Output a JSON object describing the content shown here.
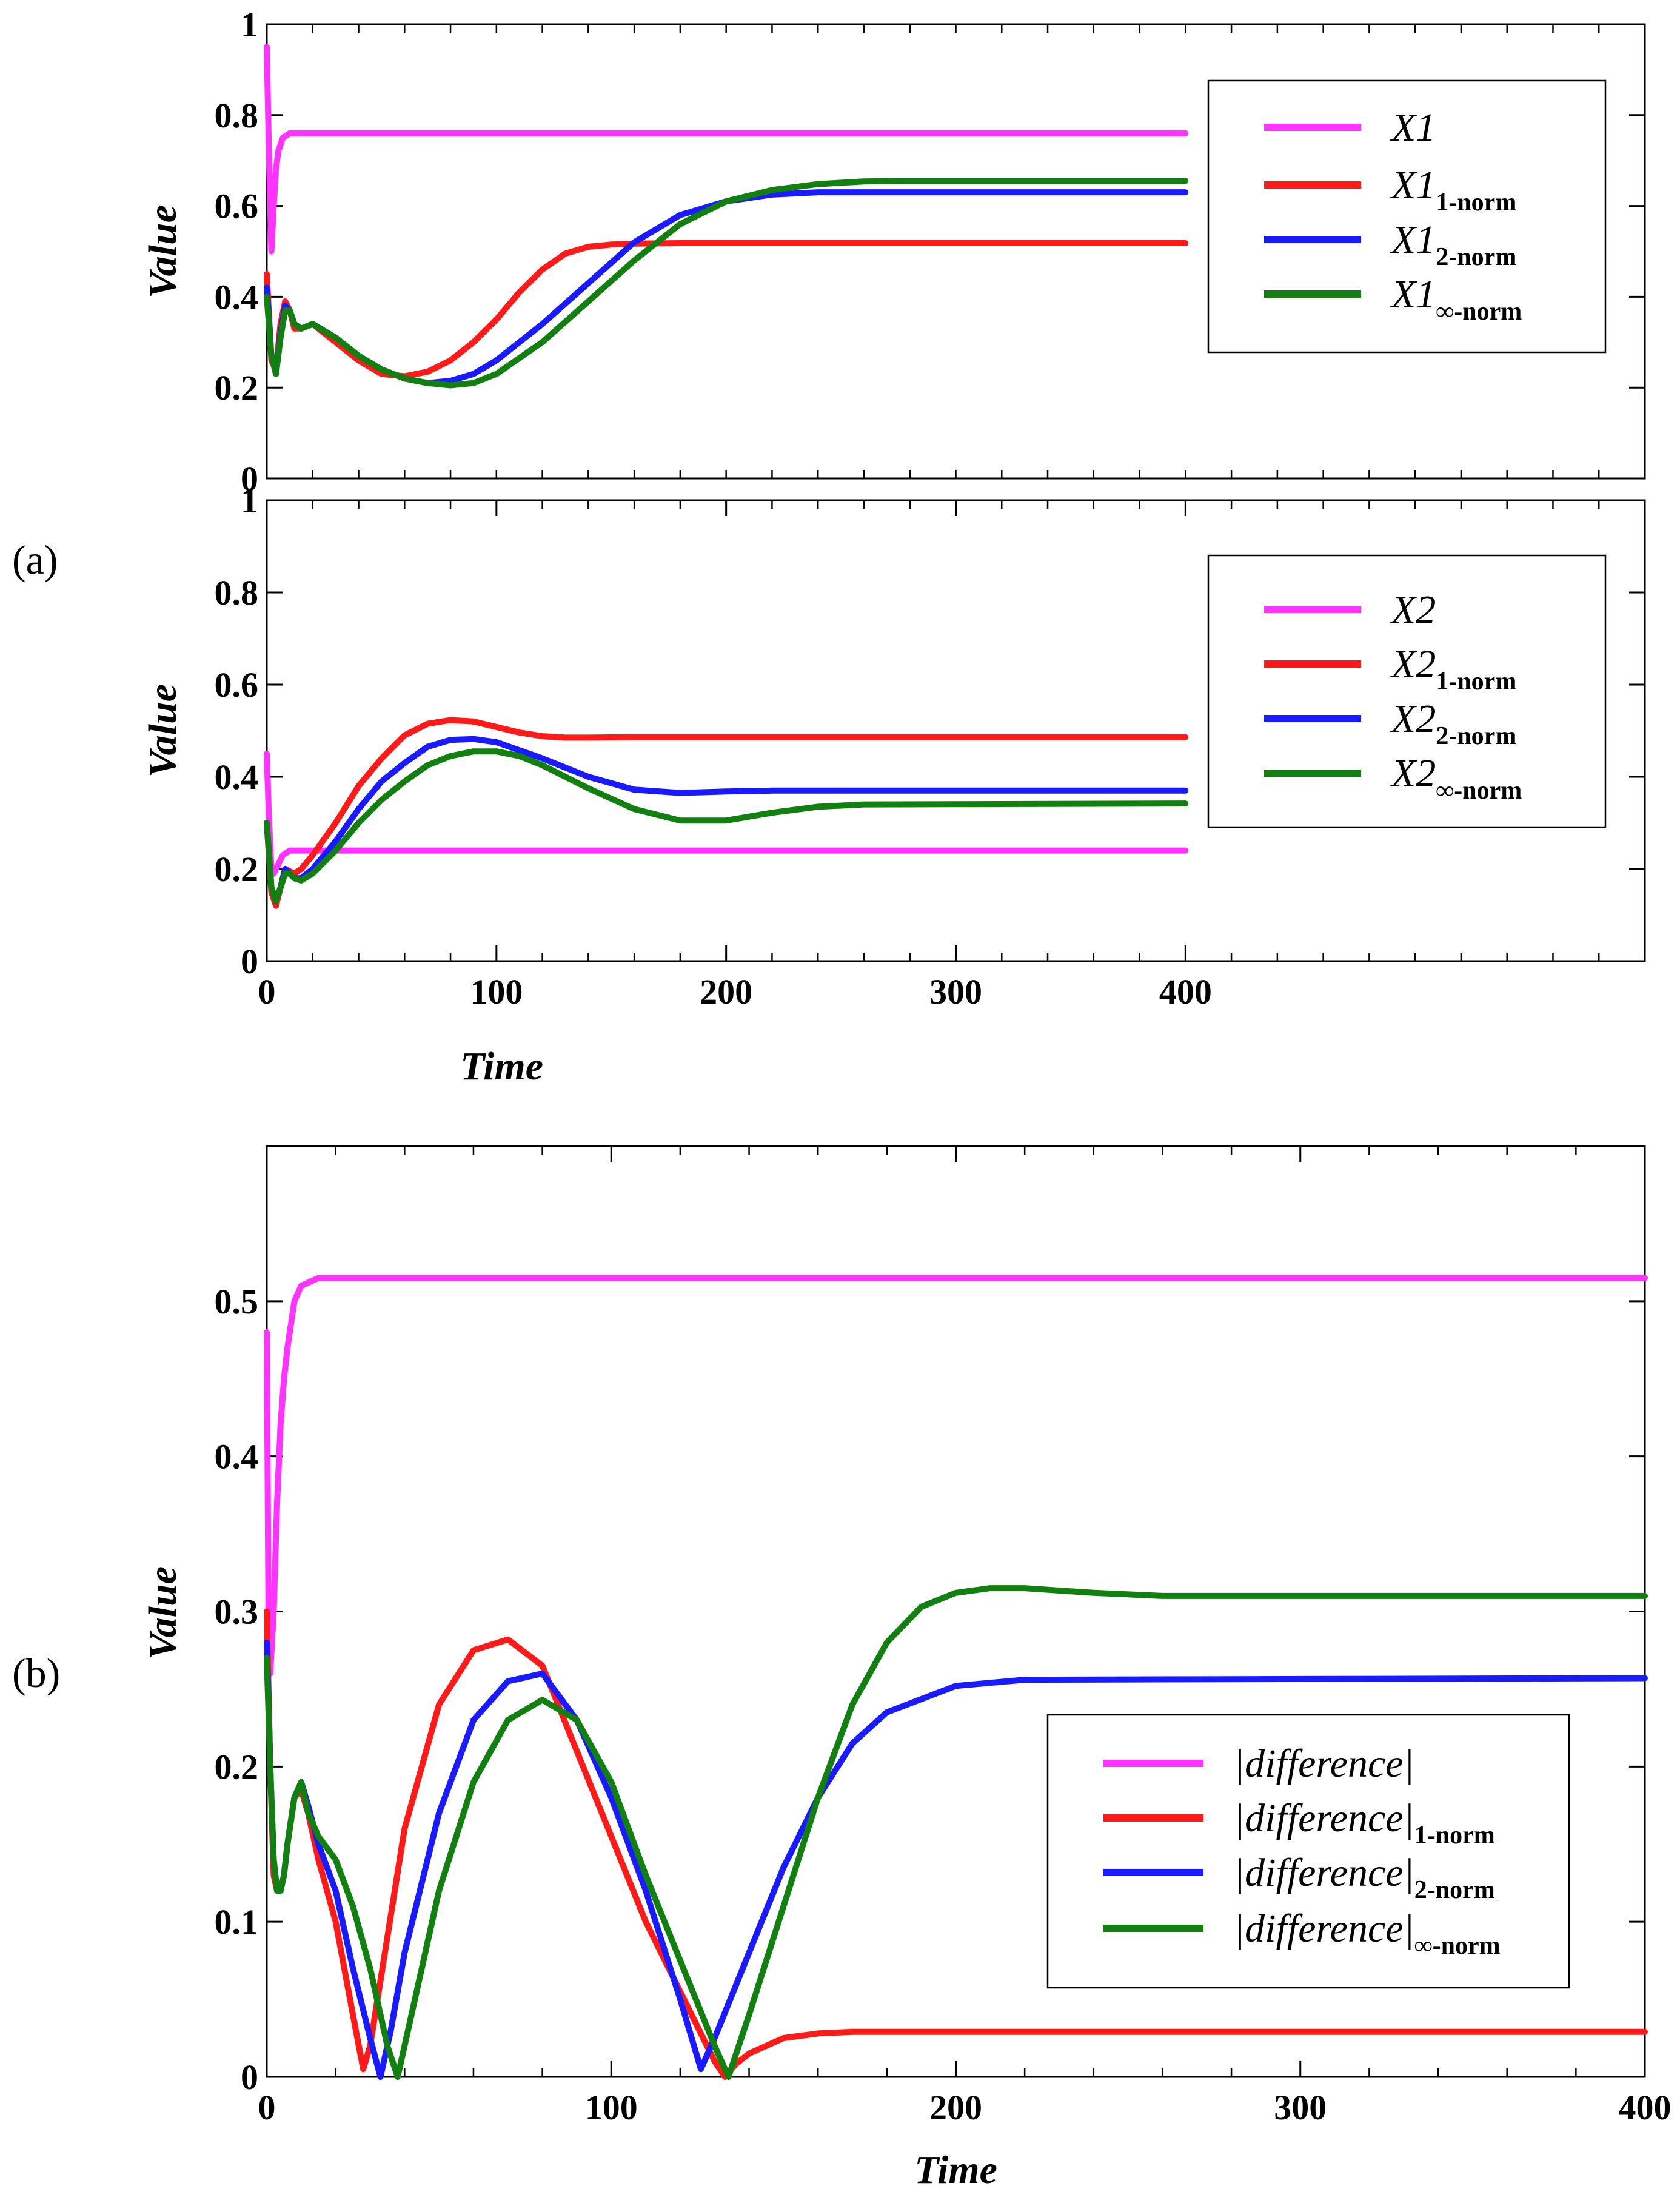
{
  "figure": {
    "label_a": "(a)",
    "label_b": "(b)"
  },
  "colors": {
    "magenta": "#ff33ff",
    "red": "#ff1a1a",
    "blue": "#1a1aff",
    "green": "#118011"
  },
  "chart_data": [
    {
      "id": "a1",
      "type": "line",
      "title": "",
      "xlabel": "",
      "ylabel": "Value",
      "xlim": [
        0,
        600
      ],
      "ylim": [
        0,
        1
      ],
      "xticks": [],
      "yticks": [
        0,
        0.2,
        0.4,
        0.6,
        0.8,
        1
      ],
      "yticklabels": [
        "0",
        "0.2",
        "0.4",
        "0.6",
        "0.8",
        "1"
      ],
      "legend_position": "top-right",
      "series": [
        {
          "name": "X1",
          "legend_main": "X1",
          "legend_sub": "",
          "color": "#ff33ff",
          "x": [
            0,
            1,
            2,
            3,
            4,
            5,
            7,
            10,
            15,
            50,
            100,
            200,
            300,
            400
          ],
          "y": [
            0.95,
            0.7,
            0.5,
            0.6,
            0.68,
            0.72,
            0.75,
            0.76,
            0.76,
            0.76,
            0.76,
            0.76,
            0.76,
            0.76
          ]
        },
        {
          "name": "X1 1-norm",
          "legend_main": "X1",
          "legend_sub": "1-norm",
          "color": "#ff1a1a",
          "x": [
            0,
            2,
            4,
            6,
            8,
            10,
            12,
            15,
            20,
            30,
            40,
            50,
            60,
            70,
            80,
            90,
            100,
            110,
            120,
            130,
            140,
            150,
            160,
            180,
            200,
            400
          ],
          "y": [
            0.45,
            0.26,
            0.24,
            0.34,
            0.39,
            0.37,
            0.33,
            0.33,
            0.34,
            0.3,
            0.26,
            0.23,
            0.225,
            0.235,
            0.26,
            0.3,
            0.35,
            0.41,
            0.46,
            0.495,
            0.51,
            0.515,
            0.517,
            0.518,
            0.518,
            0.518
          ]
        },
        {
          "name": "X1 2-norm",
          "legend_main": "X1",
          "legend_sub": "2-norm",
          "color": "#1a1aff",
          "x": [
            0,
            2,
            4,
            6,
            8,
            10,
            12,
            15,
            20,
            30,
            40,
            50,
            60,
            70,
            80,
            90,
            100,
            120,
            140,
            160,
            180,
            200,
            220,
            240,
            260,
            400
          ],
          "y": [
            0.42,
            0.27,
            0.23,
            0.32,
            0.38,
            0.37,
            0.34,
            0.33,
            0.34,
            0.31,
            0.27,
            0.24,
            0.22,
            0.21,
            0.215,
            0.23,
            0.26,
            0.34,
            0.43,
            0.52,
            0.58,
            0.61,
            0.625,
            0.63,
            0.63,
            0.63
          ]
        },
        {
          "name": "X1 inf-norm",
          "legend_main": "X1",
          "legend_sub": "∞-norm",
          "color": "#118011",
          "x": [
            0,
            2,
            4,
            6,
            8,
            10,
            12,
            15,
            20,
            30,
            40,
            50,
            60,
            70,
            80,
            90,
            100,
            120,
            140,
            160,
            180,
            200,
            220,
            240,
            260,
            280,
            400
          ],
          "y": [
            0.4,
            0.27,
            0.23,
            0.31,
            0.37,
            0.37,
            0.34,
            0.33,
            0.34,
            0.31,
            0.27,
            0.24,
            0.22,
            0.21,
            0.205,
            0.21,
            0.23,
            0.3,
            0.39,
            0.48,
            0.56,
            0.61,
            0.635,
            0.648,
            0.654,
            0.655,
            0.655
          ]
        }
      ]
    },
    {
      "id": "a2",
      "type": "line",
      "title": "",
      "xlabel": "Time",
      "ylabel": "Value",
      "xlim": [
        0,
        600
      ],
      "ylim": [
        0,
        1
      ],
      "xticks": [
        0,
        100,
        200,
        300,
        400
      ],
      "xticklabels": [
        "0",
        "100",
        "200",
        "300",
        "400"
      ],
      "yticks": [
        0,
        0.2,
        0.4,
        0.6,
        0.8,
        1
      ],
      "yticklabels": [
        "0",
        "0.2",
        "0.4",
        "0.6",
        "0.8",
        "1"
      ],
      "legend_position": "top-right",
      "series": [
        {
          "name": "X2",
          "legend_main": "X2",
          "legend_sub": "",
          "color": "#ff33ff",
          "x": [
            0,
            1,
            2,
            3,
            5,
            7,
            10,
            15,
            50,
            100,
            200,
            300,
            400
          ],
          "y": [
            0.45,
            0.3,
            0.2,
            0.19,
            0.21,
            0.23,
            0.24,
            0.24,
            0.24,
            0.24,
            0.24,
            0.24,
            0.24
          ]
        },
        {
          "name": "X2 1-norm",
          "legend_main": "X2",
          "legend_sub": "1-norm",
          "color": "#ff1a1a",
          "x": [
            0,
            2,
            4,
            6,
            8,
            10,
            12,
            15,
            20,
            30,
            40,
            50,
            60,
            70,
            80,
            90,
            100,
            110,
            120,
            130,
            140,
            160,
            200,
            400
          ],
          "y": [
            0.3,
            0.15,
            0.12,
            0.16,
            0.2,
            0.195,
            0.19,
            0.2,
            0.23,
            0.3,
            0.38,
            0.44,
            0.49,
            0.515,
            0.523,
            0.52,
            0.508,
            0.496,
            0.488,
            0.485,
            0.485,
            0.486,
            0.486,
            0.486
          ]
        },
        {
          "name": "X2 2-norm",
          "legend_main": "X2",
          "legend_sub": "2-norm",
          "color": "#1a1aff",
          "x": [
            0,
            2,
            4,
            6,
            8,
            10,
            12,
            15,
            20,
            30,
            40,
            50,
            60,
            70,
            80,
            90,
            100,
            120,
            140,
            160,
            180,
            200,
            220,
            400
          ],
          "y": [
            0.3,
            0.16,
            0.13,
            0.16,
            0.2,
            0.19,
            0.18,
            0.18,
            0.2,
            0.26,
            0.33,
            0.39,
            0.43,
            0.465,
            0.48,
            0.482,
            0.475,
            0.44,
            0.4,
            0.372,
            0.365,
            0.368,
            0.37,
            0.37
          ]
        },
        {
          "name": "X2 inf-norm",
          "legend_main": "X2",
          "legend_sub": "∞-norm",
          "color": "#118011",
          "x": [
            0,
            2,
            4,
            6,
            8,
            10,
            12,
            15,
            20,
            30,
            40,
            50,
            60,
            70,
            80,
            90,
            100,
            110,
            120,
            140,
            160,
            180,
            200,
            220,
            240,
            260,
            400
          ],
          "y": [
            0.3,
            0.16,
            0.13,
            0.16,
            0.19,
            0.19,
            0.18,
            0.175,
            0.19,
            0.24,
            0.3,
            0.35,
            0.39,
            0.425,
            0.445,
            0.455,
            0.455,
            0.445,
            0.425,
            0.375,
            0.33,
            0.305,
            0.305,
            0.322,
            0.335,
            0.34,
            0.342
          ]
        }
      ]
    },
    {
      "id": "b",
      "type": "line",
      "title": "",
      "xlabel": "Time",
      "ylabel": "Value",
      "xlim": [
        0,
        400
      ],
      "ylim": [
        0,
        0.6
      ],
      "xticks": [
        0,
        100,
        200,
        300,
        400
      ],
      "xticklabels": [
        "0",
        "100",
        "200",
        "300",
        "400"
      ],
      "yticks": [
        0,
        0.1,
        0.2,
        0.3,
        0.4,
        0.5
      ],
      "yticklabels": [
        "0",
        "0.1",
        "0.2",
        "0.3",
        "0.4",
        "0.5"
      ],
      "legend_position": "lower-right",
      "series": [
        {
          "name": "|difference|",
          "legend_main": "|difference|",
          "legend_sub": "",
          "color": "#ff33ff",
          "x": [
            0,
            0.5,
            1,
            2,
            3,
            4,
            5,
            6,
            8,
            10,
            15,
            20,
            50,
            100,
            200,
            300,
            400
          ],
          "y": [
            0.48,
            0.3,
            0.26,
            0.3,
            0.37,
            0.42,
            0.45,
            0.47,
            0.5,
            0.51,
            0.515,
            0.515,
            0.515,
            0.515,
            0.515,
            0.515,
            0.515
          ]
        },
        {
          "name": "|difference| 1-norm",
          "legend_main": "|difference|",
          "legend_sub": "1-norm",
          "color": "#ff1a1a",
          "x": [
            0,
            1,
            2,
            3,
            4,
            5,
            6,
            8,
            10,
            12,
            15,
            20,
            25,
            28,
            30,
            35,
            40,
            50,
            60,
            70,
            80,
            90,
            100,
            110,
            120,
            130,
            133,
            136,
            140,
            150,
            160,
            170,
            200,
            400
          ],
          "y": [
            0.3,
            0.2,
            0.13,
            0.12,
            0.12,
            0.13,
            0.15,
            0.18,
            0.185,
            0.17,
            0.14,
            0.1,
            0.04,
            0.005,
            0.02,
            0.09,
            0.16,
            0.24,
            0.275,
            0.282,
            0.265,
            0.21,
            0.155,
            0.1,
            0.055,
            0.01,
            0.0,
            0.008,
            0.015,
            0.025,
            0.028,
            0.029,
            0.029,
            0.029
          ]
        },
        {
          "name": "|difference| 2-norm",
          "legend_main": "|difference|",
          "legend_sub": "2-norm",
          "color": "#1a1aff",
          "x": [
            0,
            1,
            2,
            3,
            4,
            5,
            6,
            8,
            10,
            12,
            15,
            20,
            25,
            30,
            33,
            36,
            40,
            50,
            60,
            70,
            80,
            90,
            100,
            110,
            120,
            126,
            130,
            140,
            150,
            160,
            170,
            180,
            200,
            220,
            400
          ],
          "y": [
            0.28,
            0.2,
            0.14,
            0.12,
            0.12,
            0.13,
            0.15,
            0.18,
            0.19,
            0.175,
            0.15,
            0.12,
            0.07,
            0.025,
            0.0,
            0.03,
            0.08,
            0.17,
            0.23,
            0.255,
            0.26,
            0.23,
            0.18,
            0.12,
            0.05,
            0.005,
            0.025,
            0.08,
            0.135,
            0.18,
            0.215,
            0.235,
            0.252,
            0.256,
            0.257
          ]
        },
        {
          "name": "|difference| inf-norm",
          "legend_main": "|difference|",
          "legend_sub": "∞-norm",
          "color": "#118011",
          "x": [
            0,
            1,
            2,
            3,
            4,
            5,
            6,
            8,
            10,
            12,
            15,
            20,
            25,
            30,
            35,
            38,
            40,
            45,
            50,
            60,
            70,
            80,
            90,
            100,
            110,
            120,
            130,
            134,
            140,
            150,
            160,
            170,
            180,
            190,
            200,
            210,
            220,
            240,
            260,
            300,
            400
          ],
          "y": [
            0.27,
            0.2,
            0.14,
            0.12,
            0.12,
            0.13,
            0.15,
            0.18,
            0.19,
            0.17,
            0.155,
            0.14,
            0.11,
            0.07,
            0.02,
            0.0,
            0.02,
            0.07,
            0.12,
            0.19,
            0.23,
            0.243,
            0.23,
            0.19,
            0.13,
            0.075,
            0.02,
            0.0,
            0.04,
            0.11,
            0.18,
            0.24,
            0.28,
            0.303,
            0.312,
            0.315,
            0.315,
            0.312,
            0.31,
            0.31,
            0.31
          ]
        }
      ]
    }
  ]
}
